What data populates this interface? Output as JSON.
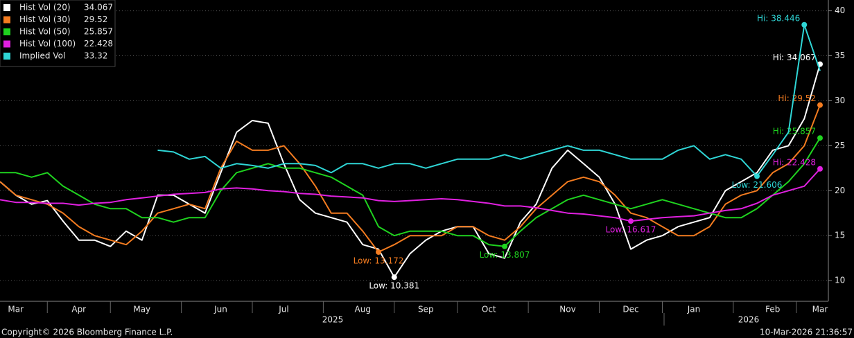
{
  "chart_data": {
    "type": "line",
    "categories": [
      null,
      "Mar",
      null,
      null,
      null,
      "Apr",
      null,
      null,
      null,
      "May",
      null,
      null,
      null,
      null,
      "Jun",
      null,
      null,
      null,
      "Jul",
      null,
      null,
      null,
      null,
      "Aug",
      null,
      null,
      null,
      "Sep",
      null,
      null,
      null,
      "Oct",
      null,
      null,
      null,
      null,
      "Nov",
      null,
      null,
      null,
      "Dec",
      null,
      null,
      null,
      "Jan",
      null,
      null,
      null,
      null,
      "Feb",
      null,
      null,
      "Mar"
    ],
    "x_groups": [
      "2025",
      "2026"
    ],
    "ylim": [
      7.7,
      41.2
    ],
    "yticks": [
      10,
      15,
      20,
      25,
      30,
      35,
      40
    ],
    "grid": true,
    "series": [
      {
        "name": "Hist Vol (20)",
        "color": "#ffffff",
        "hi_label": "Hi: 34.067",
        "low_label": "Low: 10.381",
        "values": [
          21,
          19.5,
          18.5,
          18.9,
          16.6,
          14.5,
          14.5,
          13.8,
          15.5,
          14.5,
          19.5,
          19.5,
          18.5,
          17.5,
          22,
          26.5,
          27.8,
          27.5,
          23,
          19,
          17.5,
          17,
          16.5,
          14,
          13.5,
          10.381,
          13,
          14.5,
          15.5,
          16,
          16,
          13,
          12.5,
          16.5,
          18.5,
          22.5,
          24.5,
          23,
          21.5,
          18.5,
          13.5,
          14.5,
          15,
          16,
          16.5,
          17,
          20,
          21,
          22,
          24.5,
          25,
          28,
          34.067
        ]
      },
      {
        "name": "Hist Vol (30)",
        "color": "#f47c20",
        "hi_label": "Hi: 29.52",
        "low_label": "Low: 13.172",
        "values": [
          21,
          19.5,
          19,
          18.5,
          17.5,
          16,
          15,
          14.5,
          14,
          15.5,
          17.5,
          18,
          18.5,
          18,
          22.5,
          25.5,
          24.5,
          24.5,
          25,
          23,
          20.5,
          17.5,
          17.5,
          15.5,
          13.172,
          14,
          15,
          15,
          15,
          16,
          16,
          15,
          14.5,
          16,
          18,
          19.5,
          21,
          21.5,
          21,
          19.5,
          17.5,
          17,
          16,
          15,
          15,
          16,
          18.5,
          19.5,
          20,
          22,
          23,
          25,
          29.52
        ]
      },
      {
        "name": "Hist Vol (50)",
        "color": "#1fd31f",
        "hi_label": "Hi: 25.857",
        "low_label": "Low: 13.807",
        "values": [
          22,
          22,
          21.5,
          22,
          20.5,
          19.5,
          18.5,
          18,
          18,
          17,
          17,
          16.5,
          17,
          17,
          20,
          22,
          22.5,
          23,
          22.5,
          22.5,
          22,
          21.5,
          20.5,
          19.5,
          16,
          15,
          15.5,
          15.5,
          15.5,
          15,
          15,
          14,
          13.807,
          15.5,
          17,
          18,
          19,
          19.5,
          19,
          18.5,
          18,
          18.5,
          19,
          18.5,
          18,
          17.5,
          17,
          17,
          18,
          19.5,
          21,
          23,
          25.857
        ]
      },
      {
        "name": "Hist Vol (100)",
        "color": "#e020e0",
        "hi_label": "Hi: 22.428",
        "low_label": "Low: 16.617",
        "values": [
          19,
          18.7,
          18.7,
          18.6,
          18.6,
          18.4,
          18.6,
          18.7,
          19,
          19.2,
          19.4,
          19.6,
          19.7,
          19.8,
          20.2,
          20.3,
          20.2,
          20,
          19.9,
          19.7,
          19.6,
          19.4,
          19.3,
          19.2,
          18.9,
          18.8,
          18.9,
          19,
          19.1,
          19,
          18.8,
          18.6,
          18.3,
          18.3,
          18.1,
          17.8,
          17.5,
          17.4,
          17.2,
          17,
          16.617,
          16.8,
          17,
          17.1,
          17.2,
          17.5,
          17.8,
          18,
          18.6,
          19.5,
          20,
          20.5,
          22.428
        ]
      },
      {
        "name": "Implied Vol",
        "color": "#2fd6d6",
        "hi_label": "Hi: 38.446",
        "low_label": "Low: 21.606",
        "values": [
          null,
          null,
          null,
          null,
          null,
          null,
          null,
          null,
          null,
          null,
          24.5,
          24.3,
          23.5,
          23.8,
          22.5,
          23,
          22.8,
          22.5,
          23,
          23,
          22.8,
          22,
          23,
          23,
          22.5,
          23,
          23,
          22.5,
          23,
          23.5,
          23.5,
          23.5,
          24,
          23.5,
          24,
          24.5,
          25,
          24.5,
          24.5,
          24,
          23.5,
          23.5,
          23.5,
          24.5,
          25,
          23.5,
          24,
          23.5,
          21.606,
          24,
          26.5,
          38.446,
          33.32
        ]
      }
    ],
    "copyright": "Copyright© 2026 Bloomberg Finance L.P.",
    "timestamp": "10-Mar-2026 21:36:57"
  }
}
